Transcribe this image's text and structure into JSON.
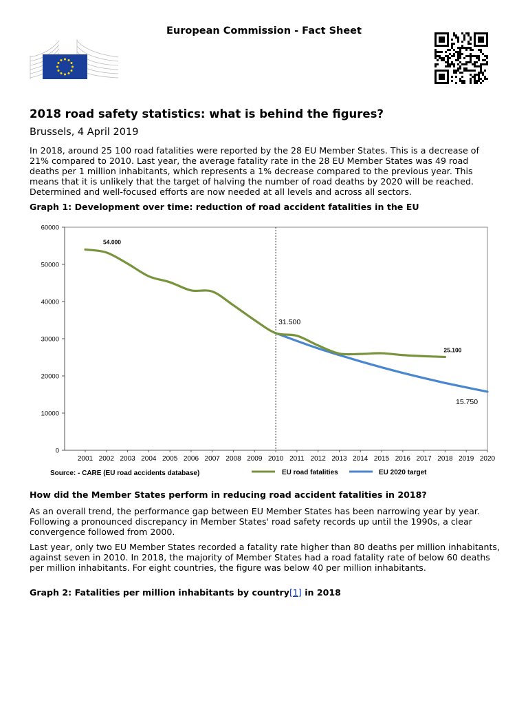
{
  "header": {
    "title": "European Commission - Fact Sheet",
    "logo_icon": "european-commission-logo",
    "qr_icon": "qr-code"
  },
  "document": {
    "title": "2018 road safety statistics: what is behind the figures?",
    "dateline": "Brussels, 4 April 2019",
    "intro": "In 2018, around 25 100 road fatalities were reported by the 28 EU Member States. This is a decrease of 21% compared to 2010. Last year, the average fatality rate in the 28 EU Member States was 49 road deaths per 1 million inhabitants, which represents a 1% decrease compared to the previous year. This means that it is unlikely that the target of halving the number of road deaths by 2020 will be reached. Determined and well-focused efforts are now needed at all levels and across all sectors.",
    "graph1_caption": "Graph 1: Development over time: reduction of road accident fatalities in the EU",
    "section2_heading": "How did the Member States perform in reducing road accident fatalities in 2018?",
    "para2": "As an overall trend, the performance gap between EU Member States has been narrowing year by year. Following a pronounced discrepancy in Member States' road safety records up until the 1990s, a clear convergence followed from 2000.",
    "para3": "Last year, only two EU Member States recorded a fatality rate higher than 80 deaths per million inhabitants, against seven in 2010. In 2018, the majority of Member States had a road fatality rate of below 60 deaths per million inhabitants. For eight countries, the figure was below 40 per million inhabitants.",
    "graph2_caption_before": "Graph 2: Fatalities per million inhabitants by country",
    "graph2_footnote": "[1]",
    "graph2_caption_after": " in 2018"
  },
  "chart_data": {
    "type": "line",
    "title": "",
    "xlabel": "",
    "ylabel": "",
    "x": [
      2001,
      2002,
      2003,
      2004,
      2005,
      2006,
      2007,
      2008,
      2009,
      2010,
      2011,
      2012,
      2013,
      2014,
      2015,
      2016,
      2017,
      2018,
      2019,
      2020
    ],
    "y_ticks": [
      "0",
      "10000",
      "20000",
      "30000",
      "40000",
      "50000",
      "60000"
    ],
    "ylim": [
      0,
      60000
    ],
    "xlim": [
      2000,
      2020
    ],
    "grid": false,
    "series": [
      {
        "name": "EU road fatalities",
        "color": "#77933c",
        "x": [
          2001,
          2002,
          2003,
          2004,
          2005,
          2006,
          2007,
          2008,
          2009,
          2010,
          2011,
          2012,
          2013,
          2014,
          2015,
          2016,
          2017,
          2018
        ],
        "values": [
          54000,
          53200,
          50200,
          46800,
          45200,
          43000,
          42700,
          39000,
          35000,
          31500,
          30800,
          28200,
          26000,
          25900,
          26100,
          25600,
          25300,
          25100
        ]
      },
      {
        "name": "EU 2020 target",
        "color": "#4a86d0",
        "x": [
          2010,
          2011,
          2012,
          2013,
          2014,
          2015,
          2016,
          2017,
          2018,
          2019,
          2020
        ],
        "values": [
          31500,
          29400,
          27400,
          25600,
          23900,
          22300,
          20800,
          19400,
          18100,
          16900,
          15750
        ]
      }
    ],
    "annotations": [
      {
        "text": "54.000",
        "x": 2001,
        "y": 54000
      },
      {
        "text": "31.500",
        "x": 2010,
        "y": 31500
      },
      {
        "text": "25.100",
        "x": 2018,
        "y": 25100
      },
      {
        "text": "15.750",
        "x": 2020,
        "y": 15750
      }
    ],
    "vertical_marker": 2010,
    "source": "Source: - CARE (EU road accidents database)",
    "legend_placement": "bottom"
  }
}
